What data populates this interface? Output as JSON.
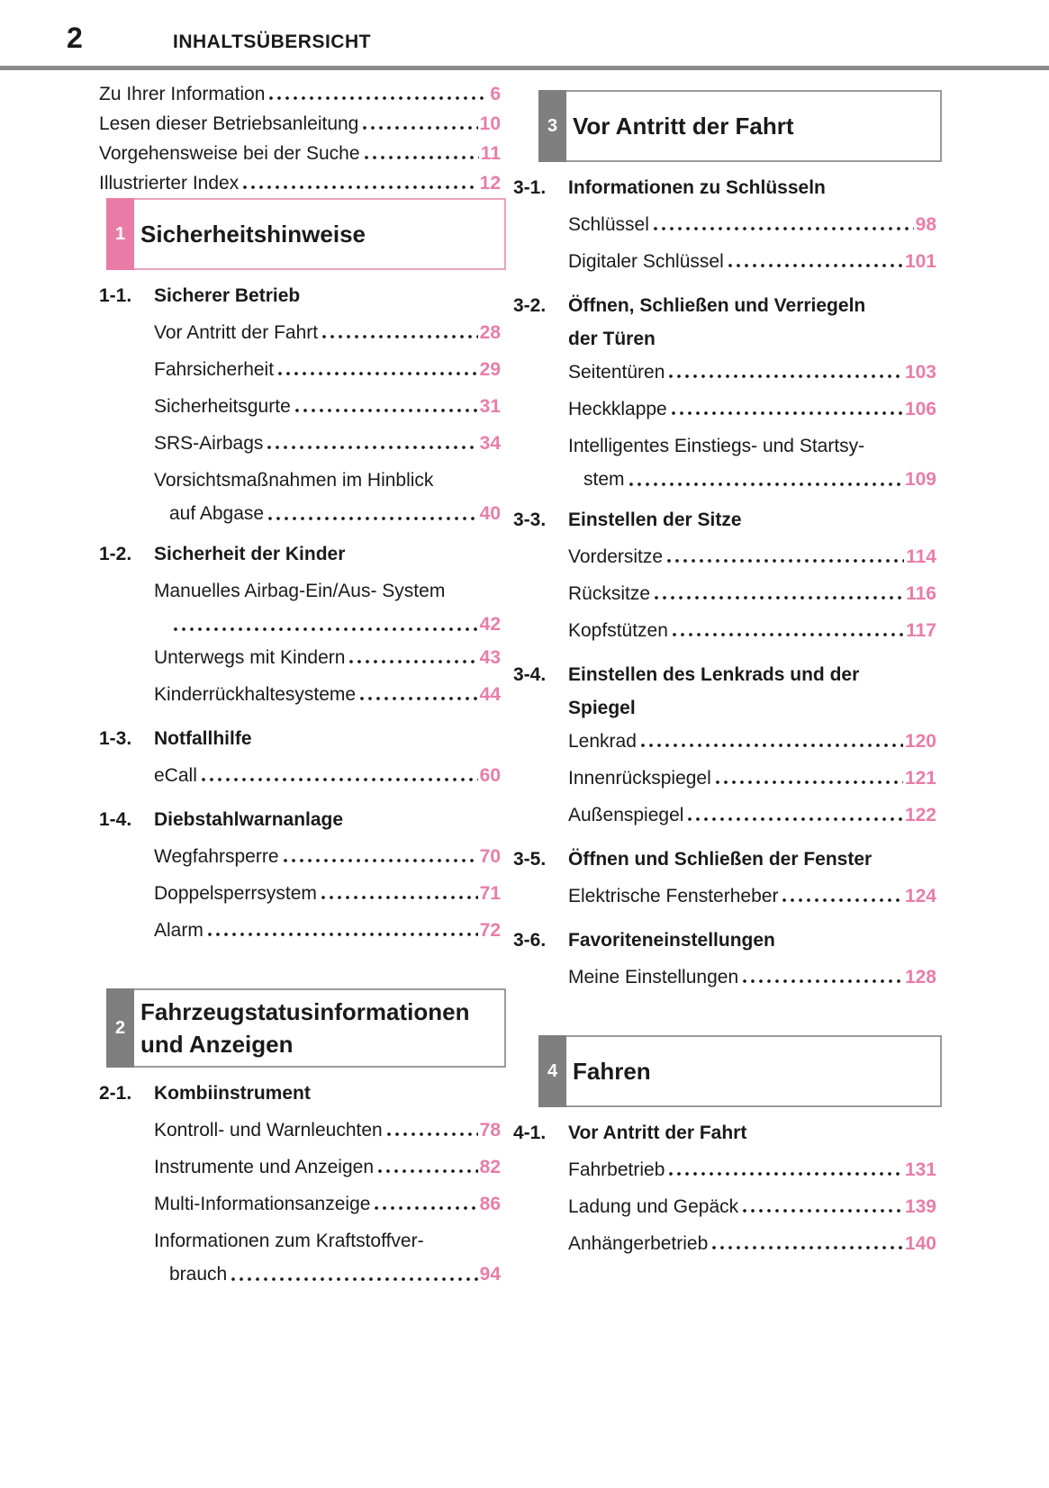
{
  "page": {
    "number": "2",
    "header": "INHALTSÜBERSICHT"
  },
  "colors": {
    "page_number_pink": "#e87da8",
    "chapter1_tab": "#e87ca6",
    "chapter1_border": "#e8a3c1",
    "gray_tab": "#7f7f7f",
    "gray_border": "#9a9a9a",
    "header_rule": "#8a8a8a",
    "text": "#1a1a1a"
  },
  "intro_items": [
    {
      "label": "Zu Ihrer Information",
      "page": "6"
    },
    {
      "label": "Lesen dieser Betriebsanleitung",
      "page": "10"
    },
    {
      "label": "Vorgehensweise bei der Suche",
      "page": "11"
    },
    {
      "label": "Illustrierter Index",
      "page": "12"
    }
  ],
  "columns": {
    "left": {
      "chapters": [
        {
          "tab": "1",
          "accent": "pink",
          "title_lines": [
            "Sicherheitshinweise"
          ],
          "sections": [
            {
              "number": "1-1.",
              "title_lines": [
                "Sicherer Betrieb"
              ],
              "items": [
                {
                  "lines": [
                    "Vor Antritt der Fahrt"
                  ],
                  "page": "28"
                },
                {
                  "lines": [
                    "Fahrsicherheit"
                  ],
                  "page": "29"
                },
                {
                  "lines": [
                    "Sicherheitsgurte"
                  ],
                  "page": "31"
                },
                {
                  "lines": [
                    "SRS-Airbags"
                  ],
                  "page": "34"
                },
                {
                  "lines": [
                    "Vorsichtsmaßnahmen im Hinblick",
                    "auf Abgase"
                  ],
                  "page": "40"
                }
              ]
            },
            {
              "number": "1-2.",
              "title_lines": [
                "Sicherheit der Kinder"
              ],
              "items": [
                {
                  "lines": [
                    "Manuelles Airbag-Ein/Aus- System",
                    ""
                  ],
                  "page": "42"
                },
                {
                  "lines": [
                    "Unterwegs mit Kindern"
                  ],
                  "page": "43"
                },
                {
                  "lines": [
                    "Kinderrückhaltesysteme"
                  ],
                  "page": "44"
                }
              ]
            },
            {
              "number": "1-3.",
              "title_lines": [
                "Notfallhilfe"
              ],
              "items": [
                {
                  "lines": [
                    "eCall"
                  ],
                  "page": "60"
                }
              ]
            },
            {
              "number": "1-4.",
              "title_lines": [
                "Diebstahlwarnanlage"
              ],
              "items": [
                {
                  "lines": [
                    "Wegfahrsperre"
                  ],
                  "page": "70"
                },
                {
                  "lines": [
                    "Doppelsperrsystem"
                  ],
                  "page": "71"
                },
                {
                  "lines": [
                    "Alarm"
                  ],
                  "page": "72"
                }
              ]
            }
          ]
        },
        {
          "tab": "2",
          "accent": "gray",
          "title_lines": [
            "Fahrzeugstatusinformationen",
            "und Anzeigen"
          ],
          "sections": [
            {
              "number": "2-1.",
              "title_lines": [
                "Kombiinstrument"
              ],
              "items": [
                {
                  "lines": [
                    "Kontroll- und Warnleuchten"
                  ],
                  "page": "78"
                },
                {
                  "lines": [
                    "Instrumente und Anzeigen"
                  ],
                  "page": "82"
                },
                {
                  "lines": [
                    "Multi-Informationsanzeige"
                  ],
                  "page": "86"
                },
                {
                  "lines": [
                    "Informationen zum Kraftstoffver-",
                    "brauch"
                  ],
                  "page": "94"
                }
              ]
            }
          ]
        }
      ]
    },
    "right": {
      "chapters": [
        {
          "tab": "3",
          "accent": "gray",
          "title_lines": [
            "Vor Antritt der Fahrt"
          ],
          "sections": [
            {
              "number": "3-1.",
              "title_lines": [
                "Informationen zu Schlüsseln"
              ],
              "items": [
                {
                  "lines": [
                    "Schlüssel"
                  ],
                  "page": "98"
                },
                {
                  "lines": [
                    "Digitaler Schlüssel"
                  ],
                  "page": "101"
                }
              ]
            },
            {
              "number": "3-2.",
              "title_lines": [
                "Öffnen, Schließen und Verriegeln",
                "der Türen"
              ],
              "items": [
                {
                  "lines": [
                    "Seitentüren"
                  ],
                  "page": "103"
                },
                {
                  "lines": [
                    "Heckklappe"
                  ],
                  "page": "106"
                },
                {
                  "lines": [
                    "Intelligentes Einstiegs- und Startsy-",
                    "stem"
                  ],
                  "page": "109"
                }
              ]
            },
            {
              "number": "3-3.",
              "title_lines": [
                "Einstellen der Sitze"
              ],
              "items": [
                {
                  "lines": [
                    "Vordersitze"
                  ],
                  "page": "114"
                },
                {
                  "lines": [
                    "Rücksitze"
                  ],
                  "page": "116"
                },
                {
                  "lines": [
                    "Kopfstützen"
                  ],
                  "page": "117"
                }
              ]
            },
            {
              "number": "3-4.",
              "title_lines": [
                "Einstellen des Lenkrads und der",
                "Spiegel"
              ],
              "items": [
                {
                  "lines": [
                    "Lenkrad"
                  ],
                  "page": "120"
                },
                {
                  "lines": [
                    "Innenrückspiegel"
                  ],
                  "page": "121"
                },
                {
                  "lines": [
                    "Außenspiegel"
                  ],
                  "page": "122"
                }
              ]
            },
            {
              "number": "3-5.",
              "title_lines": [
                "Öffnen und Schließen der Fenster"
              ],
              "items": [
                {
                  "lines": [
                    "Elektrische Fensterheber"
                  ],
                  "page": "124"
                }
              ]
            },
            {
              "number": "3-6.",
              "title_lines": [
                "Favoriteneinstellungen"
              ],
              "items": [
                {
                  "lines": [
                    "Meine Einstellungen"
                  ],
                  "page": "128"
                }
              ]
            }
          ]
        },
        {
          "tab": "4",
          "accent": "gray",
          "title_lines": [
            "Fahren"
          ],
          "sections": [
            {
              "number": "4-1.",
              "title_lines": [
                "Vor Antritt der Fahrt"
              ],
              "items": [
                {
                  "lines": [
                    "Fahrbetrieb"
                  ],
                  "page": "131"
                },
                {
                  "lines": [
                    "Ladung und Gepäck"
                  ],
                  "page": "139"
                },
                {
                  "lines": [
                    "Anhängerbetrieb"
                  ],
                  "page": "140"
                }
              ]
            }
          ]
        }
      ]
    }
  }
}
